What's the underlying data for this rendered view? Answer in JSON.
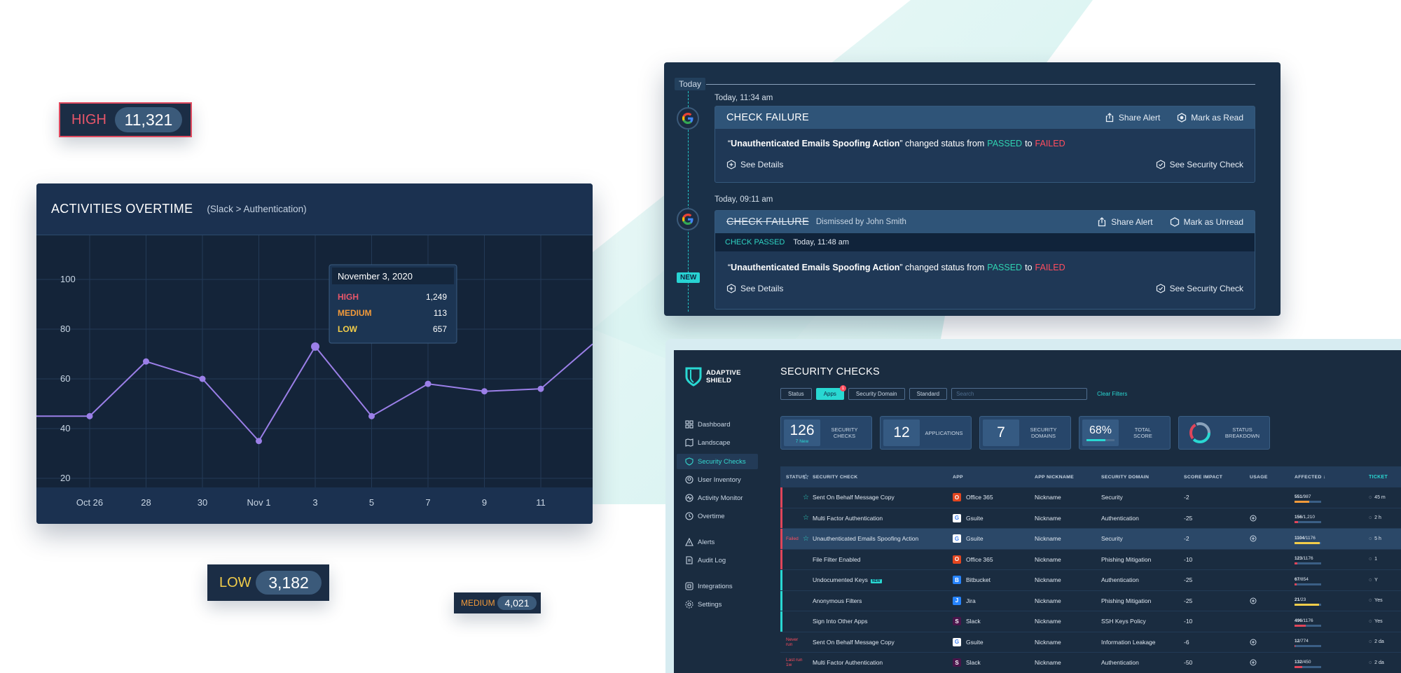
{
  "badges": {
    "high": {
      "label": "HIGH",
      "value": "11,321"
    },
    "low": {
      "label": "LOW",
      "value": "3,182"
    },
    "medium": {
      "label": "MEDIUM",
      "value": "4,021"
    }
  },
  "chart": {
    "title": "ACTIVITIES OVERTIME",
    "subtitle": "(Slack > Authentication)",
    "tooltip": {
      "date": "November 3, 2020",
      "rows": [
        {
          "label": "HIGH",
          "value": "1,249"
        },
        {
          "label": "MEDIUM",
          "value": "113"
        },
        {
          "label": "LOW",
          "value": "657"
        }
      ]
    }
  },
  "chart_data": {
    "type": "line",
    "categories": [
      "Oct 26",
      "28",
      "30",
      "Nov 1",
      "3",
      "5",
      "7",
      "9",
      "11"
    ],
    "series": [
      {
        "values": [
          45,
          67,
          60,
          35,
          73,
          45,
          58,
          55,
          56
        ]
      }
    ],
    "y_ticks": [
      20,
      40,
      60,
      80,
      100
    ],
    "ylim": [
      0,
      100
    ],
    "grid": true,
    "line_color": "#9b7fe8"
  },
  "alerts": {
    "today_label": "Today",
    "items": [
      {
        "time": "Today, 11:34 am",
        "title": "CHECK FAILURE",
        "share": "Share Alert",
        "mark": "Mark as Read",
        "msg_open": "“",
        "msg_name": "Unauthenticated Emails Spoofing Action",
        "msg_close": "” changed status from",
        "passed": "PASSED",
        "to": "to",
        "failed": "FAILED",
        "details": "See Details",
        "security": "See Security Check"
      },
      {
        "time": "Today, 09:11 am",
        "title": "CHECK FAILURE",
        "dismissed": "Dismissed by John Smith",
        "share": "Share Alert",
        "mark": "Mark as Unread",
        "passed_label": "CHECK PASSED",
        "passed_time": "Today, 11:48 am",
        "msg_open": "“",
        "msg_name": "Unauthenticated Emails Spoofing Action",
        "msg_close": "” changed status from",
        "passed": "PASSED",
        "to": "to",
        "failed": "FAILED",
        "details": "See Details",
        "security": "See Security Check",
        "new": "NEW"
      }
    ]
  },
  "app": {
    "logo": [
      "ADAPTIVE",
      "SHIELD"
    ],
    "nav": [
      {
        "label": "Dashboard",
        "icon": "grid-icon"
      },
      {
        "label": "Landscape",
        "icon": "map-icon"
      },
      {
        "label": "Security Checks",
        "icon": "shield-icon",
        "active": true
      },
      {
        "label": "User Inventory",
        "icon": "user-icon"
      },
      {
        "label": "Activity Monitor",
        "icon": "activity-icon"
      },
      {
        "label": "Overtime",
        "icon": "clock-icon"
      },
      {
        "label": "Alerts",
        "icon": "alert-icon"
      },
      {
        "label": "Audit Log",
        "icon": "doc-icon"
      },
      {
        "label": "Integrations",
        "icon": "plug-icon"
      },
      {
        "label": "Settings",
        "icon": "gear-icon"
      }
    ],
    "title": "SECURITY CHECKS",
    "filters": {
      "status": "Status",
      "apps": "Apps",
      "apps_count": "1",
      "domain": "Security Domain",
      "standard": "Standard",
      "search_placeholder": "Search",
      "clear": "Clear Filters"
    },
    "stats": [
      {
        "value": "126",
        "sub": "7 New",
        "label1": "SECURITY",
        "label2": "CHECKS"
      },
      {
        "value": "12",
        "label1": "APPLICATIONS",
        "label2": ""
      },
      {
        "value": "7",
        "label1": "SECURITY",
        "label2": "DOMAINS"
      },
      {
        "value": "68%",
        "label1": "TOTAL",
        "label2": "SCORE",
        "progress": 0.68
      },
      {
        "label1": "STATUS",
        "label2": "BREAKDOWN"
      }
    ],
    "columns": [
      "STATUS",
      "SECURITY CHECK",
      "APP",
      "APP NICKNAME",
      "SECURITY DOMAIN",
      "SCORE IMPACT",
      "USAGE",
      "AFFECTED ↓",
      "TICKET"
    ],
    "rows": [
      {
        "status": "",
        "sev": "#e0455a",
        "star": true,
        "check": "Sent On Behalf Message Copy",
        "app": "Office 365",
        "nick": "Nickname",
        "domain": "Security",
        "score": "-2",
        "usage": false,
        "aff_a": "551",
        "aff_b": "/987",
        "aff_frac": 0.56,
        "aff_color": "#f29a3a",
        "ticket": "45 m"
      },
      {
        "status": "",
        "sev": "#e0455a",
        "star": true,
        "check": "Multi Factor Authentication",
        "app": "Gsuite",
        "nick": "Nickname",
        "domain": "Authentication",
        "score": "-25",
        "usage": true,
        "aff_a": "156",
        "aff_b": "/1,210",
        "aff_frac": 0.13,
        "aff_color": "#e0455a",
        "ticket": "2 h"
      },
      {
        "status": "Failed",
        "sev": "#e0455a",
        "star": true,
        "check": "Unauthenticated Emails Spoofing Action",
        "app": "Gsuite",
        "nick": "Nickname",
        "domain": "Security",
        "score": "-2",
        "usage": true,
        "aff_a": "1104",
        "aff_b": "/1176",
        "aff_frac": 0.94,
        "aff_color": "#f2cd4a",
        "ticket": "5 h",
        "hl": true
      },
      {
        "status": "",
        "sev": "#e0455a",
        "star": false,
        "check": "File Filter Enabled",
        "app": "Office 365",
        "nick": "Nickname",
        "domain": "Phishing Mitigation",
        "score": "-10",
        "usage": false,
        "aff_a": "123",
        "aff_b": "/1176",
        "aff_frac": 0.1,
        "aff_color": "#e0455a",
        "ticket": "1"
      },
      {
        "status": "",
        "sev": "#29d8d2",
        "star": false,
        "check": "Undocumented Keys",
        "new": "NEW",
        "app": "Bitbucket",
        "nick": "Nickname",
        "domain": "Authentication",
        "score": "-25",
        "usage": false,
        "aff_a": "67",
        "aff_b": "/854",
        "aff_frac": 0.08,
        "aff_color": "#e0455a",
        "ticket": "Y"
      },
      {
        "status": "",
        "sev": "#29d8d2",
        "star": false,
        "check": "Anonymous Filters",
        "app": "Jira",
        "nick": "Nickname",
        "domain": "Phishing Mitigation",
        "score": "-25",
        "usage": true,
        "aff_a": "21",
        "aff_b": "/23",
        "aff_frac": 0.91,
        "aff_color": "#f2cd4a",
        "ticket": "Yes"
      },
      {
        "status": "",
        "sev": "#29d8d2",
        "star": false,
        "check": "Sign Into Other Apps",
        "app": "Slack",
        "nick": "Nickname",
        "domain": "SSH Keys Policy",
        "score": "-10",
        "usage": false,
        "aff_a": "496",
        "aff_b": "/1176",
        "aff_frac": 0.42,
        "aff_color": "#e0455a",
        "ticket": "Yes"
      },
      {
        "status": "Never run",
        "sev": "",
        "star": false,
        "check": "Sent On Behalf Message Copy",
        "app": "Gsuite",
        "nick": "Nickname",
        "domain": "Information Leakage",
        "score": "-6",
        "usage": true,
        "aff_a": "12",
        "aff_b": "/774",
        "aff_frac": 0.02,
        "aff_color": "#e0455a",
        "ticket": "2 da"
      },
      {
        "status": "Last run 1w",
        "sev": "",
        "star": false,
        "check": "Multi Factor Authentication",
        "app": "Slack",
        "nick": "Nickname",
        "domain": "Authentication",
        "score": "-50",
        "usage": true,
        "aff_a": "132",
        "aff_b": "/450",
        "aff_frac": 0.29,
        "aff_color": "#e0455a",
        "ticket": "2 da"
      }
    ]
  },
  "colors": {
    "accent": "#29d8d2",
    "high": "#e8566a",
    "medium": "#f29a3a",
    "low": "#f2cd4a",
    "line": "#9b7fe8"
  }
}
